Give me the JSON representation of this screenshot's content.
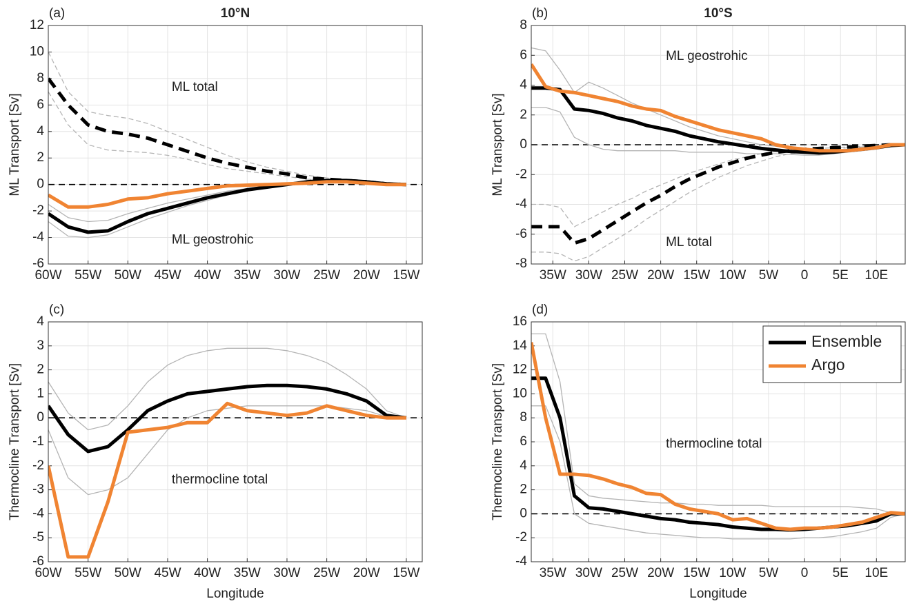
{
  "chart_data": [
    {
      "type": "line",
      "label": "(a)",
      "title": "10°N",
      "ylabel": "ML Transport [Sv]",
      "annotations": [
        "ML total",
        "ML geostrohic"
      ],
      "x": [
        -60,
        -57.5,
        -55,
        -52.5,
        -50,
        -47.5,
        -45,
        -42.5,
        -40,
        -37.5,
        -35,
        -32.5,
        -30,
        -27.5,
        -25,
        -22.5,
        -20,
        -17.5,
        -15
      ],
      "xlim": [
        -60,
        -13
      ],
      "xticks": [
        {
          "value": -60,
          "label": "60W"
        },
        {
          "value": -55,
          "label": "55W"
        },
        {
          "value": -50,
          "label": "50W"
        },
        {
          "value": -45,
          "label": "45W"
        },
        {
          "value": -40,
          "label": "40W"
        },
        {
          "value": -35,
          "label": "35W"
        },
        {
          "value": -30,
          "label": "30W"
        },
        {
          "value": -25,
          "label": "25W"
        },
        {
          "value": -20,
          "label": "20W"
        },
        {
          "value": -15,
          "label": "15W"
        }
      ],
      "ylim": [
        -6,
        12
      ],
      "yticks": [
        -6,
        -4,
        -2,
        0,
        2,
        4,
        6,
        8,
        10,
        12
      ],
      "grid": true,
      "zero_line": true,
      "series": [
        {
          "color": "#b4b4b4",
          "style": "solid",
          "values": [
            -2.8,
            -3.9,
            -4.0,
            -3.8,
            -3.2,
            -2.6,
            -2.1,
            -1.6,
            -1.2,
            -0.8,
            -0.5,
            -0.2,
            0,
            0.2,
            0.3,
            0.3,
            0.2,
            0.05,
            0
          ]
        },
        {
          "color": "#b4b4b4",
          "style": "solid",
          "values": [
            -1.5,
            -2.5,
            -2.8,
            -2.7,
            -2.2,
            -1.8,
            -1.4,
            -1.1,
            -0.8,
            -0.5,
            -0.3,
            -0.1,
            0.1,
            0.25,
            0.4,
            0.35,
            0.2,
            0.05,
            0
          ]
        },
        {
          "color": "#b4b4b4",
          "style": "dashed",
          "values": [
            10,
            7,
            5.5,
            5.2,
            5,
            4.6,
            4,
            3.4,
            2.8,
            2.2,
            1.7,
            1.3,
            1,
            0.7,
            0.5,
            0.3,
            0.2,
            0.05,
            0
          ]
        },
        {
          "color": "#b4b4b4",
          "style": "dashed",
          "values": [
            7,
            4.5,
            3,
            2.6,
            2.5,
            2.4,
            2.2,
            1.9,
            1.5,
            1.2,
            1,
            0.8,
            0.6,
            0.4,
            0.3,
            0.2,
            0.1,
            0.05,
            0
          ]
        },
        {
          "color": "#000000",
          "style": "dashed",
          "values": [
            8,
            6,
            4.5,
            4.0,
            3.8,
            3.5,
            3.0,
            2.5,
            2.0,
            1.6,
            1.3,
            1.0,
            0.8,
            0.5,
            0.4,
            0.3,
            0.2,
            0.05,
            0
          ]
        },
        {
          "color": "#000000",
          "style": "solid",
          "values": [
            -2.2,
            -3.2,
            -3.6,
            -3.5,
            -2.8,
            -2.2,
            -1.8,
            -1.4,
            -1.0,
            -0.7,
            -0.4,
            -0.2,
            0,
            0.2,
            0.3,
            0.3,
            0.2,
            0.05,
            0
          ]
        },
        {
          "color": "#f08432",
          "style": "solid",
          "values": [
            -0.8,
            -1.7,
            -1.7,
            -1.5,
            -1.1,
            -1.0,
            -0.7,
            -0.5,
            -0.3,
            -0.1,
            -0.05,
            0,
            0.05,
            0.1,
            0.2,
            0.2,
            0.1,
            0,
            0
          ]
        }
      ]
    },
    {
      "type": "line",
      "label": "(b)",
      "title": "10°S",
      "ylabel": "ML Transport [Sv]",
      "annotations": [
        "ML geostrohic",
        "ML total"
      ],
      "x": [
        -38,
        -36,
        -34,
        -32,
        -30,
        -28,
        -26,
        -24,
        -22,
        -20,
        -18,
        -16,
        -14,
        -12,
        -10,
        -8,
        -6,
        -4,
        -2,
        0,
        2,
        4,
        6,
        8,
        10,
        12,
        14
      ],
      "xlim": [
        -38,
        14
      ],
      "xticks": [
        {
          "value": -35,
          "label": "35W"
        },
        {
          "value": -30,
          "label": "30W"
        },
        {
          "value": -25,
          "label": "25W"
        },
        {
          "value": -20,
          "label": "20W"
        },
        {
          "value": -15,
          "label": "15W"
        },
        {
          "value": -10,
          "label": "10W"
        },
        {
          "value": -5,
          "label": "5W"
        },
        0,
        {
          "value": 5,
          "label": "5E"
        },
        {
          "value": 10,
          "label": "10E"
        }
      ],
      "ylim": [
        -8,
        8
      ],
      "yticks": [
        -8,
        -6,
        -4,
        -2,
        0,
        2,
        4,
        6,
        8
      ],
      "grid": true,
      "zero_line": true,
      "series": [
        {
          "color": "#b4b4b4",
          "style": "solid",
          "values": [
            6.5,
            6.3,
            5,
            3.5,
            4.2,
            3.8,
            3.3,
            2.8,
            2.4,
            2,
            1.6,
            1.2,
            0.9,
            0.6,
            0.4,
            0.2,
            0,
            -0.1,
            -0.2,
            -0.3,
            -0.35,
            -0.35,
            -0.3,
            -0.2,
            -0.1,
            0,
            0
          ]
        },
        {
          "color": "#b4b4b4",
          "style": "solid",
          "values": [
            2.5,
            2.5,
            2.2,
            0.5,
            0,
            -0.3,
            -0.4,
            -0.4,
            -0.4,
            -0.4,
            -0.4,
            -0.5,
            -0.5,
            -0.5,
            -0.5,
            -0.6,
            -0.6,
            -0.6,
            -0.65,
            -0.7,
            -0.7,
            -0.6,
            -0.5,
            -0.4,
            -0.3,
            -0.1,
            0
          ]
        },
        {
          "color": "#b4b4b4",
          "style": "dashed",
          "values": [
            -4,
            -4,
            -4.2,
            -5.5,
            -5,
            -4.5,
            -4,
            -3.6,
            -3.1,
            -2.7,
            -2.3,
            -1.9,
            -1.6,
            -1.3,
            -1,
            -0.8,
            -0.6,
            -0.45,
            -0.35,
            -0.3,
            -0.25,
            -0.2,
            -0.15,
            -0.1,
            -0.05,
            0,
            0
          ]
        },
        {
          "color": "#b4b4b4",
          "style": "dashed",
          "values": [
            -7.2,
            -7.2,
            -7.3,
            -7.8,
            -7.5,
            -6.9,
            -6.3,
            -5.7,
            -5,
            -4.4,
            -3.8,
            -3.2,
            -2.7,
            -2.2,
            -1.8,
            -1.4,
            -1.1,
            -0.8,
            -0.6,
            -0.5,
            -0.4,
            -0.3,
            -0.2,
            -0.15,
            -0.1,
            0,
            0
          ]
        },
        {
          "color": "#000000",
          "style": "dashed",
          "values": [
            -5.5,
            -5.5,
            -5.5,
            -6.6,
            -6.3,
            -5.7,
            -5.1,
            -4.5,
            -3.9,
            -3.4,
            -2.8,
            -2.3,
            -1.9,
            -1.5,
            -1.2,
            -0.9,
            -0.7,
            -0.5,
            -0.4,
            -0.3,
            -0.25,
            -0.2,
            -0.15,
            -0.1,
            -0.05,
            0,
            0
          ]
        },
        {
          "color": "#000000",
          "style": "solid",
          "values": [
            3.8,
            3.8,
            3.7,
            2.4,
            2.3,
            2.1,
            1.8,
            1.6,
            1.3,
            1.1,
            0.9,
            0.6,
            0.4,
            0.2,
            0.05,
            -0.1,
            -0.25,
            -0.35,
            -0.45,
            -0.5,
            -0.55,
            -0.5,
            -0.4,
            -0.3,
            -0.2,
            -0.05,
            0
          ]
        },
        {
          "color": "#f08432",
          "style": "solid",
          "values": [
            5.4,
            3.9,
            3.6,
            3.5,
            3.3,
            3.1,
            2.9,
            2.6,
            2.4,
            2.3,
            1.9,
            1.6,
            1.3,
            1.0,
            0.8,
            0.6,
            0.4,
            0,
            -0.2,
            -0.3,
            -0.4,
            -0.4,
            -0.4,
            -0.3,
            -0.2,
            0,
            0
          ]
        }
      ]
    },
    {
      "type": "line",
      "label": "(c)",
      "ylabel": "Thermocline Transport [Sv]",
      "xlabel": "Longitude",
      "annotations": [
        "thermocline total"
      ],
      "x": [
        -60,
        -57.5,
        -55,
        -52.5,
        -50,
        -47.5,
        -45,
        -42.5,
        -40,
        -37.5,
        -35,
        -32.5,
        -30,
        -27.5,
        -25,
        -22.5,
        -20,
        -17.5,
        -15
      ],
      "xlim": [
        -60,
        -13
      ],
      "xticks": [
        {
          "value": -60,
          "label": "60W"
        },
        {
          "value": -55,
          "label": "55W"
        },
        {
          "value": -50,
          "label": "50W"
        },
        {
          "value": -45,
          "label": "45W"
        },
        {
          "value": -40,
          "label": "40W"
        },
        {
          "value": -35,
          "label": "35W"
        },
        {
          "value": -30,
          "label": "30W"
        },
        {
          "value": -25,
          "label": "25W"
        },
        {
          "value": -20,
          "label": "20W"
        },
        {
          "value": -15,
          "label": "15W"
        }
      ],
      "ylim": [
        -6,
        4
      ],
      "yticks": [
        -6,
        -5,
        -4,
        -3,
        -2,
        -1,
        0,
        1,
        2,
        3,
        4
      ],
      "grid": true,
      "zero_line": true,
      "series": [
        {
          "color": "#b4b4b4",
          "style": "solid",
          "values": [
            1.5,
            0.2,
            -0.5,
            -0.3,
            0.5,
            1.5,
            2.2,
            2.6,
            2.8,
            2.9,
            2.9,
            2.9,
            2.8,
            2.6,
            2.3,
            1.8,
            1.2,
            0.3,
            0
          ]
        },
        {
          "color": "#b4b4b4",
          "style": "solid",
          "values": [
            -0.5,
            -2.5,
            -3.2,
            -3,
            -2.5,
            -1.5,
            -0.5,
            0,
            0.3,
            0.4,
            0.5,
            0.5,
            0.5,
            0.5,
            0.5,
            0.4,
            0.3,
            0.05,
            0
          ]
        },
        {
          "color": "#000000",
          "style": "solid",
          "values": [
            0.5,
            -0.7,
            -1.4,
            -1.2,
            -0.5,
            0.3,
            0.7,
            1.0,
            1.1,
            1.2,
            1.3,
            1.35,
            1.35,
            1.3,
            1.2,
            1.0,
            0.7,
            0.1,
            0
          ]
        },
        {
          "color": "#f08432",
          "style": "solid",
          "values": [
            -2,
            -5.8,
            -5.8,
            -3.5,
            -0.6,
            -0.5,
            -0.4,
            -0.2,
            -0.2,
            0.6,
            0.3,
            0.2,
            0.1,
            0.2,
            0.5,
            0.3,
            0.1,
            0,
            0
          ]
        }
      ]
    },
    {
      "type": "line",
      "label": "(d)",
      "ylabel": "Thermocline Transport [Sv]",
      "xlabel": "Longitude",
      "annotations": [
        "thermocline total"
      ],
      "legend": "upper right",
      "x": [
        -38,
        -36,
        -34,
        -32,
        -30,
        -28,
        -26,
        -24,
        -22,
        -20,
        -18,
        -16,
        -14,
        -12,
        -10,
        -8,
        -6,
        -4,
        -2,
        0,
        2,
        4,
        6,
        8,
        10,
        12,
        14
      ],
      "xlim": [
        -38,
        14
      ],
      "xticks": [
        {
          "value": -35,
          "label": "35W"
        },
        {
          "value": -30,
          "label": "30W"
        },
        {
          "value": -25,
          "label": "25W"
        },
        {
          "value": -20,
          "label": "20W"
        },
        {
          "value": -15,
          "label": "15W"
        },
        {
          "value": -10,
          "label": "10W"
        },
        {
          "value": -5,
          "label": "5W"
        },
        0,
        {
          "value": 5,
          "label": "5E"
        },
        {
          "value": 10,
          "label": "10E"
        }
      ],
      "ylim": [
        -4,
        16
      ],
      "yticks": [
        -4,
        -2,
        0,
        2,
        4,
        6,
        8,
        10,
        12,
        14,
        16
      ],
      "grid": true,
      "zero_line": true,
      "series": [
        {
          "color": "#b4b4b4",
          "style": "solid",
          "values": [
            15,
            15,
            11,
            2.5,
            1.5,
            1.3,
            1.2,
            1.1,
            1,
            0.9,
            0.9,
            0.8,
            0.8,
            0.7,
            0.7,
            0.7,
            0.7,
            0.6,
            0.6,
            0.6,
            0.6,
            0.6,
            0.6,
            0.5,
            0.4,
            0.1,
            0
          ]
        },
        {
          "color": "#b4b4b4",
          "style": "solid",
          "values": [
            9,
            9,
            6,
            0,
            -0.8,
            -1,
            -1.2,
            -1.4,
            -1.6,
            -1.7,
            -1.8,
            -1.9,
            -2,
            -2,
            -2.1,
            -2.1,
            -2.1,
            -2.1,
            -2.1,
            -2,
            -2,
            -1.9,
            -1.7,
            -1.5,
            -1.2,
            -0.3,
            0
          ]
        },
        {
          "name": "Ensemble",
          "color": "#000000",
          "style": "solid",
          "values": [
            11.3,
            11.3,
            8,
            1.5,
            0.5,
            0.4,
            0.2,
            0,
            -0.2,
            -0.4,
            -0.5,
            -0.7,
            -0.8,
            -0.9,
            -1.1,
            -1.2,
            -1.3,
            -1.3,
            -1.35,
            -1.3,
            -1.2,
            -1.1,
            -1.0,
            -0.8,
            -0.6,
            0,
            0
          ]
        },
        {
          "name": "Argo",
          "color": "#f08432",
          "style": "solid",
          "values": [
            14.3,
            8,
            3.3,
            3.3,
            3.2,
            2.9,
            2.5,
            2.2,
            1.7,
            1.6,
            0.8,
            0.4,
            0.2,
            0,
            -0.5,
            -0.4,
            -0.8,
            -1.2,
            -1.3,
            -1.2,
            -1.2,
            -1.1,
            -0.9,
            -0.7,
            -0.3,
            0.1,
            0
          ]
        }
      ]
    }
  ]
}
